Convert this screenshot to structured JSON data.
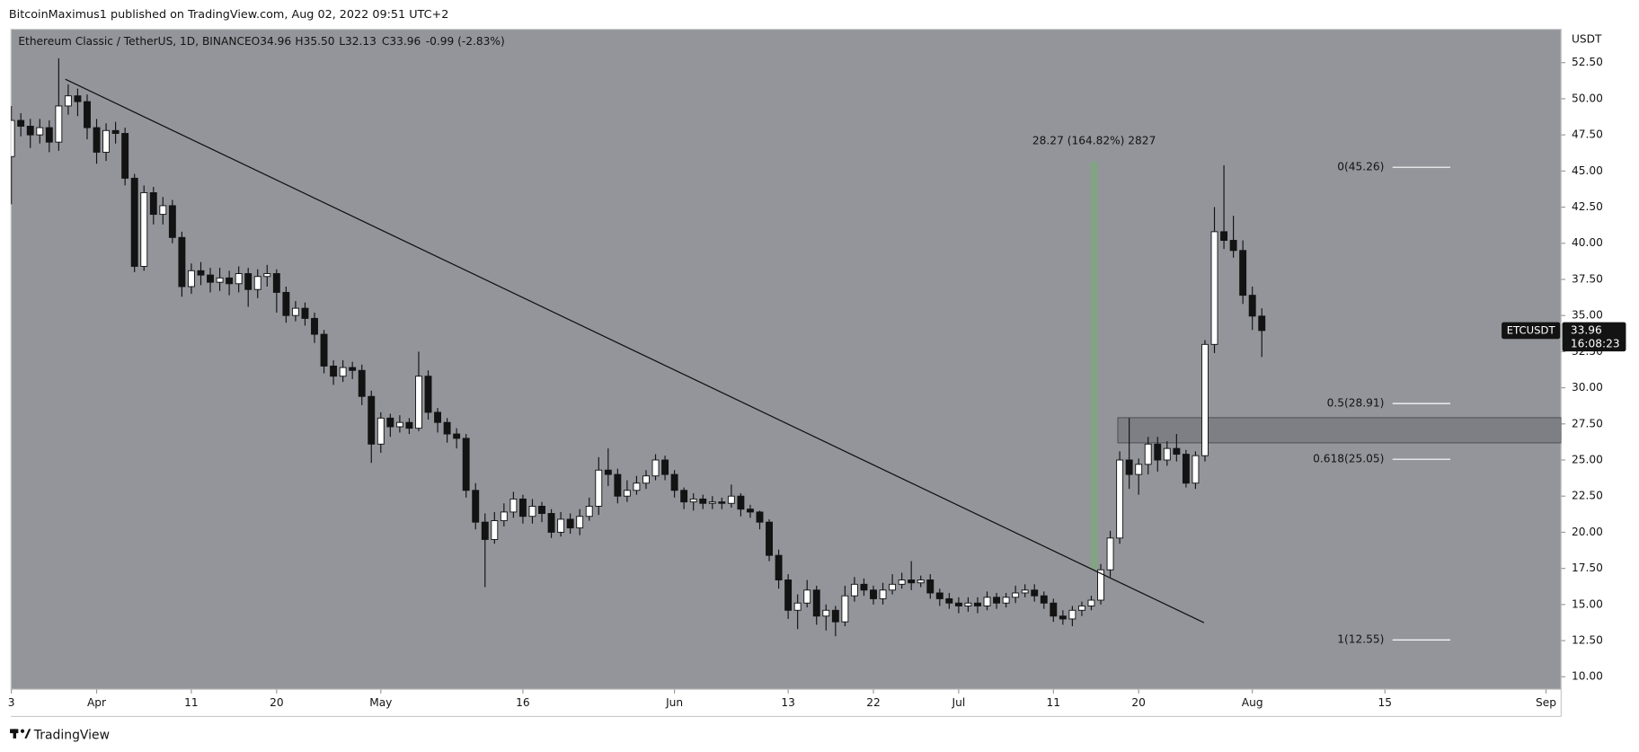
{
  "header": {
    "text": "BitcoinMaximus1 published on TradingView.com, Aug 02, 2022 09:51 UTC+2"
  },
  "footer": {
    "brand": "TradingView"
  },
  "chart_data": {
    "type": "candlestick",
    "legend": {
      "symbol": "Ethereum Classic / TetherUS, 1D, BINANCE",
      "open": "O34.96",
      "high": "H35.50",
      "low": "L32.13",
      "close": "C33.96",
      "change": "-0.99 (-2.83%)"
    },
    "y_axis_label": "USDT",
    "xlim": [
      -9.04,
      154.6
    ],
    "ylim": [
      9.13,
      54.81
    ],
    "xticks": [
      {
        "value": -9,
        "label": "3"
      },
      {
        "value": 0,
        "label": "Apr"
      },
      {
        "value": 10,
        "label": "11"
      },
      {
        "value": 19,
        "label": "20"
      },
      {
        "value": 30,
        "label": "May"
      },
      {
        "value": 45,
        "label": "16"
      },
      {
        "value": 61,
        "label": "Jun"
      },
      {
        "value": 73,
        "label": "13"
      },
      {
        "value": 82,
        "label": "22"
      },
      {
        "value": 91,
        "label": "Jul"
      },
      {
        "value": 101,
        "label": "11"
      },
      {
        "value": 110,
        "label": "20"
      },
      {
        "value": 122,
        "label": "Aug"
      },
      {
        "value": 136,
        "label": "15"
      },
      {
        "value": 153,
        "label": "Sep"
      }
    ],
    "yticks": [
      {
        "value": 10,
        "label": "10.00"
      },
      {
        "value": 12.5,
        "label": "12.50"
      },
      {
        "value": 15,
        "label": "15.00"
      },
      {
        "value": 17.5,
        "label": "17.50"
      },
      {
        "value": 20,
        "label": "20.00"
      },
      {
        "value": 22.5,
        "label": "22.50"
      },
      {
        "value": 25,
        "label": "25.00"
      },
      {
        "value": 27.5,
        "label": "27.50"
      },
      {
        "value": 30,
        "label": "30.00"
      },
      {
        "value": 32.5,
        "label": "32.50"
      },
      {
        "value": 35,
        "label": "35.00"
      },
      {
        "value": 37.5,
        "label": "37.50"
      },
      {
        "value": 40,
        "label": "40.00"
      },
      {
        "value": 42.5,
        "label": "42.50"
      },
      {
        "value": 45,
        "label": "45.00"
      },
      {
        "value": 47.5,
        "label": "47.50"
      },
      {
        "value": 50,
        "label": "50.00"
      },
      {
        "value": 52.5,
        "label": "52.50"
      }
    ],
    "grid": false,
    "up_color": "#ffffff",
    "down_color": "#131313",
    "x": [
      -9,
      -8,
      -7,
      -6,
      -5,
      -4,
      -3,
      -2,
      -1,
      0,
      1,
      2,
      3,
      4,
      5,
      6,
      7,
      8,
      9,
      10,
      11,
      12,
      13,
      14,
      15,
      16,
      17,
      18,
      19,
      20,
      21,
      22,
      23,
      24,
      25,
      26,
      27,
      28,
      29,
      30,
      31,
      32,
      33,
      34,
      35,
      36,
      37,
      38,
      39,
      40,
      41,
      42,
      43,
      44,
      45,
      46,
      47,
      48,
      49,
      50,
      51,
      52,
      53,
      54,
      55,
      56,
      57,
      58,
      59,
      60,
      61,
      62,
      63,
      64,
      65,
      66,
      67,
      68,
      69,
      70,
      71,
      72,
      73,
      74,
      75,
      76,
      77,
      78,
      79,
      80,
      81,
      82,
      83,
      84,
      85,
      86,
      87,
      88,
      89,
      90,
      91,
      92,
      93,
      94,
      95,
      96,
      97,
      98,
      99,
      100,
      101,
      102,
      103,
      104,
      105,
      106,
      107,
      108,
      109,
      110,
      111,
      112,
      113,
      114,
      115,
      116,
      117,
      118,
      119,
      120,
      121,
      122,
      123
    ],
    "open": [
      46.0,
      48.5,
      48.1,
      47.5,
      48.0,
      47.0,
      49.5,
      50.2,
      49.8,
      48.0,
      46.3,
      47.8,
      47.6,
      44.5,
      38.4,
      43.5,
      42.0,
      42.6,
      40.4,
      37.0,
      38.1,
      37.8,
      37.3,
      37.6,
      37.2,
      37.9,
      36.8,
      37.7,
      37.9,
      36.6,
      35.0,
      35.5,
      34.8,
      33.7,
      31.5,
      30.8,
      31.4,
      31.2,
      29.4,
      26.1,
      27.9,
      27.3,
      27.6,
      27.2,
      30.8,
      28.3,
      27.6,
      26.8,
      26.5,
      22.9,
      20.7,
      19.5,
      20.8,
      21.4,
      22.3,
      21.1,
      21.8,
      21.3,
      20.0,
      20.9,
      20.3,
      21.1,
      21.8,
      24.3,
      24.0,
      22.5,
      22.9,
      23.4,
      23.9,
      25.0,
      24.0,
      22.9,
      22.1,
      22.3,
      22.0,
      22.1,
      22.0,
      22.5,
      21.6,
      21.4,
      20.7,
      18.4,
      16.7,
      14.6,
      15.1,
      16.0,
      14.2,
      14.6,
      13.8,
      15.6,
      16.4,
      16.0,
      15.4,
      16.0,
      16.4,
      16.7,
      16.5,
      16.7,
      15.8,
      15.4,
      15.1,
      14.9,
      15.1,
      14.9,
      15.5,
      15.1,
      15.5,
      15.8,
      16.0,
      15.6,
      15.1,
      14.2,
      14.0,
      14.6,
      14.9,
      15.3,
      17.4,
      19.6,
      25.0,
      24.0,
      24.7,
      26.1,
      25.0,
      25.8,
      25.4,
      23.4,
      25.3,
      33.0,
      40.8,
      40.2,
      39.5,
      36.4,
      34.96
    ],
    "high": [
      49.5,
      49.0,
      48.6,
      48.6,
      48.5,
      52.8,
      51.0,
      50.7,
      50.3,
      48.6,
      48.3,
      48.4,
      48.0,
      44.8,
      44.0,
      43.9,
      43.2,
      43.0,
      40.8,
      38.6,
      38.7,
      38.3,
      38.3,
      38.1,
      38.4,
      38.3,
      38.2,
      38.5,
      38.2,
      37.0,
      36.0,
      35.9,
      35.2,
      34.0,
      31.9,
      31.9,
      31.8,
      31.6,
      29.8,
      28.3,
      28.2,
      28.1,
      27.9,
      32.5,
      31.2,
      28.6,
      27.9,
      27.2,
      26.8,
      23.4,
      21.3,
      21.4,
      22.0,
      22.8,
      22.6,
      22.3,
      22.1,
      21.6,
      21.4,
      21.3,
      21.6,
      22.4,
      25.2,
      25.8,
      24.4,
      23.6,
      23.9,
      24.3,
      25.4,
      25.3,
      24.3,
      23.1,
      22.7,
      22.6,
      22.5,
      22.4,
      23.3,
      22.7,
      21.9,
      21.5,
      20.9,
      18.8,
      17.1,
      15.7,
      16.7,
      16.3,
      15.0,
      14.9,
      16.3,
      16.9,
      16.8,
      16.3,
      16.5,
      17.1,
      17.2,
      18.0,
      17.0,
      17.1,
      16.1,
      15.8,
      15.5,
      15.5,
      15.5,
      15.9,
      15.8,
      15.8,
      16.3,
      16.4,
      16.4,
      15.9,
      15.4,
      14.6,
      14.9,
      15.2,
      15.6,
      17.8,
      20.1,
      25.6,
      27.9,
      25.1,
      26.6,
      26.6,
      26.3,
      26.8,
      25.7,
      25.6,
      33.3,
      42.5,
      45.4,
      41.9,
      40.2,
      37.0,
      35.5
    ],
    "low": [
      42.7,
      47.4,
      46.6,
      46.9,
      46.3,
      46.4,
      48.9,
      48.8,
      47.2,
      45.5,
      45.7,
      46.9,
      44.0,
      38.0,
      38.1,
      41.3,
      41.3,
      40.0,
      36.3,
      36.5,
      37.1,
      36.6,
      36.7,
      36.4,
      36.6,
      35.6,
      36.2,
      37.0,
      35.2,
      34.5,
      34.6,
      34.3,
      33.1,
      31.0,
      30.2,
      30.4,
      30.6,
      28.8,
      24.8,
      25.5,
      26.6,
      26.9,
      26.8,
      27.0,
      27.8,
      26.9,
      26.2,
      25.8,
      22.4,
      20.2,
      16.2,
      19.2,
      20.4,
      21.0,
      20.6,
      20.6,
      20.7,
      19.6,
      19.7,
      19.9,
      19.8,
      20.8,
      21.2,
      23.2,
      22.0,
      22.1,
      22.6,
      23.0,
      23.6,
      23.6,
      22.4,
      21.6,
      21.5,
      21.6,
      21.6,
      21.6,
      21.7,
      21.1,
      21.0,
      20.2,
      18.0,
      16.1,
      14.0,
      13.3,
      14.8,
      13.6,
      13.2,
      12.8,
      13.5,
      15.2,
      15.6,
      15.0,
      15.0,
      15.7,
      16.1,
      16.0,
      16.2,
      15.4,
      14.9,
      14.7,
      14.4,
      14.5,
      14.4,
      14.6,
      14.7,
      14.8,
      15.1,
      15.5,
      15.2,
      14.7,
      13.8,
      13.6,
      13.5,
      14.2,
      14.6,
      15.0,
      16.9,
      19.2,
      23.0,
      22.6,
      24.0,
      24.2,
      24.6,
      24.9,
      23.1,
      23.0,
      24.9,
      32.4,
      39.6,
      39.0,
      35.8,
      34.0,
      32.13
    ],
    "close": [
      48.5,
      48.1,
      47.5,
      48.0,
      47.0,
      49.5,
      50.2,
      49.8,
      48.0,
      46.3,
      47.8,
      47.6,
      44.5,
      38.4,
      43.5,
      42.0,
      42.6,
      40.4,
      37.0,
      38.1,
      37.8,
      37.3,
      37.6,
      37.2,
      37.9,
      36.8,
      37.7,
      37.9,
      36.6,
      35.0,
      35.5,
      34.8,
      33.7,
      31.5,
      30.8,
      31.4,
      31.2,
      29.4,
      26.1,
      27.9,
      27.3,
      27.6,
      27.2,
      30.8,
      28.3,
      27.6,
      26.8,
      26.5,
      22.9,
      20.7,
      19.5,
      20.8,
      21.4,
      22.3,
      21.1,
      21.8,
      21.3,
      20.0,
      20.9,
      20.3,
      21.1,
      21.8,
      24.3,
      24.0,
      22.5,
      22.9,
      23.4,
      23.9,
      25.0,
      24.0,
      22.9,
      22.1,
      22.3,
      22.0,
      22.1,
      22.0,
      22.5,
      21.6,
      21.4,
      20.7,
      18.4,
      16.7,
      14.6,
      15.1,
      16.0,
      14.2,
      14.6,
      13.8,
      15.6,
      16.4,
      16.0,
      15.4,
      16.0,
      16.4,
      16.7,
      16.5,
      16.7,
      15.8,
      15.4,
      15.1,
      14.9,
      15.1,
      14.9,
      15.5,
      15.1,
      15.5,
      15.8,
      16.0,
      15.6,
      15.1,
      14.2,
      14.0,
      14.6,
      14.9,
      15.3,
      17.4,
      19.6,
      25.0,
      24.0,
      24.7,
      26.1,
      25.0,
      25.8,
      25.4,
      23.4,
      25.3,
      33.0,
      40.8,
      40.2,
      39.5,
      36.4,
      34.96,
      33.96
    ],
    "trendline": {
      "x": [
        -3.3,
        116.9
      ],
      "y": [
        51.35,
        13.74
      ],
      "color": "#111111"
    },
    "measure": {
      "label": "28.27 (164.82%) 2827",
      "x": 105.3,
      "y": [
        17.44,
        45.63
      ],
      "color": "#7fa77f"
    },
    "zone": {
      "x": [
        107.8,
        154.6
      ],
      "y": [
        26.19,
        27.93
      ],
      "color": "#6b6d72"
    },
    "fib": {
      "x": [
        136.8,
        142.9
      ],
      "color": "#ffffff",
      "levels": [
        {
          "label": "0(45.26)",
          "price": 45.26
        },
        {
          "label": "0.5(28.91)",
          "price": 28.91
        },
        {
          "label": "0.618(25.05)",
          "price": 25.05
        },
        {
          "label": "1(12.55)",
          "price": 12.55
        }
      ]
    },
    "price_tag": {
      "symbol": "ETCUSDT",
      "value": 33.96,
      "countdown": "16:08:23"
    }
  }
}
